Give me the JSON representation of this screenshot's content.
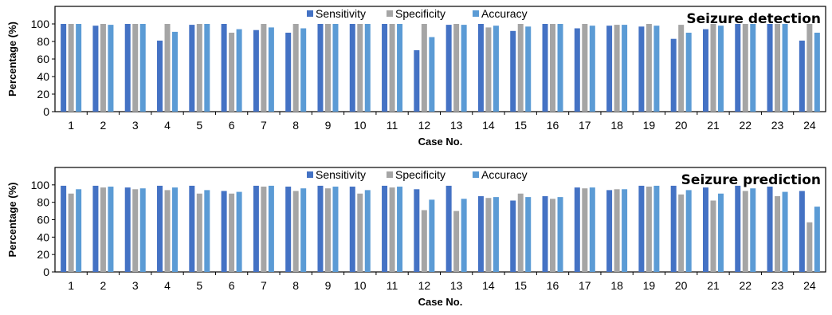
{
  "chart_data": [
    {
      "type": "bar",
      "title": "Seizure detection",
      "xlabel": "Case No.",
      "ylabel": "Percentage (%)",
      "ylim": [
        0,
        120
      ],
      "yticks": [
        0,
        20,
        40,
        60,
        80,
        100
      ],
      "grid": false,
      "legend": "top",
      "categories": [
        "1",
        "2",
        "3",
        "4",
        "5",
        "6",
        "7",
        "8",
        "9",
        "10",
        "11",
        "12",
        "13",
        "14",
        "15",
        "16",
        "17",
        "18",
        "19",
        "20",
        "21",
        "22",
        "23",
        "24"
      ],
      "series": [
        {
          "name": "Sensitivity",
          "color": "#4472C4",
          "values": [
            100,
            98,
            100,
            81,
            99,
            100,
            93,
            90,
            100,
            100,
            100,
            70,
            99,
            100,
            92,
            100,
            95,
            98,
            97,
            83,
            94,
            100,
            100,
            81
          ]
        },
        {
          "name": "Specificity",
          "color": "#A5A5A5",
          "values": [
            100,
            100,
            100,
            100,
            100,
            90,
            100,
            100,
            100,
            100,
            100,
            100,
            100,
            96,
            100,
            100,
            100,
            99,
            100,
            99,
            100,
            100,
            100,
            100
          ]
        },
        {
          "name": "Accuracy",
          "color": "#5B9BD5",
          "values": [
            100,
            99,
            100,
            91,
            100,
            94,
            96,
            95,
            100,
            100,
            100,
            85,
            99,
            98,
            97,
            100,
            98,
            99,
            98,
            90,
            98,
            100,
            100,
            90
          ]
        }
      ]
    },
    {
      "type": "bar",
      "title": "Seizure prediction",
      "xlabel": "Case No.",
      "ylabel": "Percentage (%)",
      "ylim": [
        0,
        120
      ],
      "yticks": [
        0,
        20,
        40,
        60,
        80,
        100
      ],
      "grid": false,
      "legend": "top",
      "categories": [
        "1",
        "2",
        "3",
        "4",
        "5",
        "6",
        "7",
        "8",
        "9",
        "10",
        "11",
        "12",
        "13",
        "14",
        "15",
        "16",
        "17",
        "18",
        "19",
        "20",
        "21",
        "22",
        "23",
        "24"
      ],
      "series": [
        {
          "name": "Sensitivity",
          "color": "#4472C4",
          "values": [
            99,
            99,
            97,
            99,
            99,
            93,
            99,
            98,
            99,
            98,
            99,
            95,
            99,
            87,
            82,
            87,
            97,
            94,
            99,
            99,
            97,
            99,
            98,
            93
          ]
        },
        {
          "name": "Specificity",
          "color": "#A5A5A5",
          "values": [
            90,
            97,
            95,
            94,
            90,
            90,
            98,
            93,
            96,
            90,
            97,
            71,
            70,
            85,
            90,
            84,
            96,
            95,
            98,
            89,
            82,
            93,
            87,
            57
          ]
        },
        {
          "name": "Accuracy",
          "color": "#5B9BD5",
          "values": [
            95,
            98,
            96,
            97,
            94,
            92,
            99,
            96,
            98,
            94,
            98,
            83,
            84,
            86,
            86,
            86,
            97,
            95,
            99,
            94,
            90,
            96,
            92,
            75
          ]
        }
      ]
    }
  ]
}
